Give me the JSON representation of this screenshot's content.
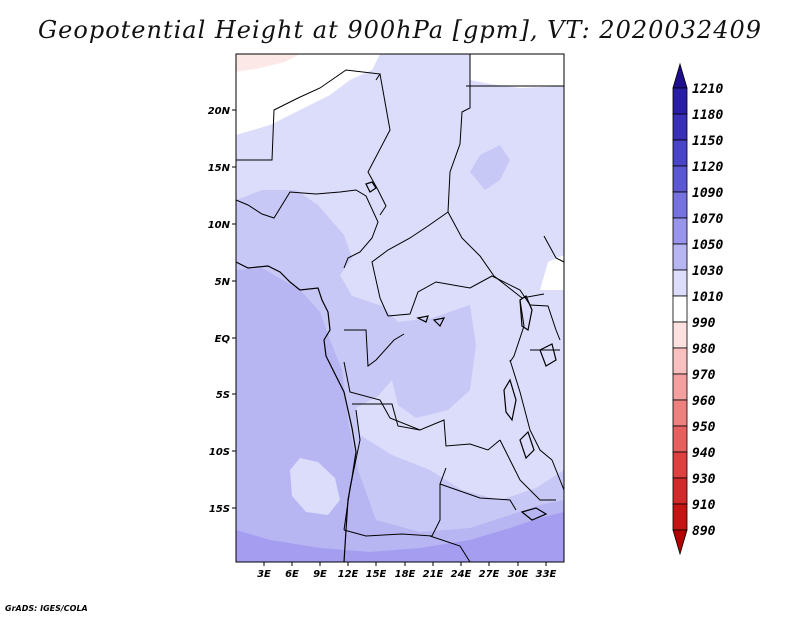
{
  "title": "Geopotential Height at 900hPa [gpm], VT: 2020032409",
  "credit": "GrADS: IGES/COLA",
  "map": {
    "lat_ticks": [
      "20N",
      "15N",
      "10N",
      "5N",
      "EQ",
      "5S",
      "10S",
      "15S"
    ],
    "lon_ticks": [
      "3E",
      "6E",
      "9E",
      "12E",
      "15E",
      "18E",
      "21E",
      "24E",
      "27E",
      "30E",
      "33E"
    ],
    "colors": {
      "light_lavender": "#dcdcfb",
      "lavender": "#c8c8f6",
      "mid_lavender": "#b7b5f2",
      "deep_lavender": "#a49df0",
      "white": "#ffffff",
      "pink": "#fde8e8",
      "border": "#000000"
    }
  },
  "colorbar": {
    "levels": [
      "1210",
      "1180",
      "1150",
      "1120",
      "1090",
      "1070",
      "1050",
      "1030",
      "1010",
      "990",
      "980",
      "970",
      "960",
      "950",
      "940",
      "930",
      "910",
      "890"
    ],
    "colors": [
      "#1e0f8c",
      "#2a1ea6",
      "#3a30b8",
      "#4a44c8",
      "#5c58d4",
      "#7672e0",
      "#9a95ec",
      "#b7b5f2",
      "#dcdcfb",
      "#ffffff",
      "#fde0e0",
      "#f9c0c0",
      "#f4a0a0",
      "#ee8080",
      "#e66060",
      "#de4040",
      "#d22a2a",
      "#c41414",
      "#b40000"
    ]
  }
}
